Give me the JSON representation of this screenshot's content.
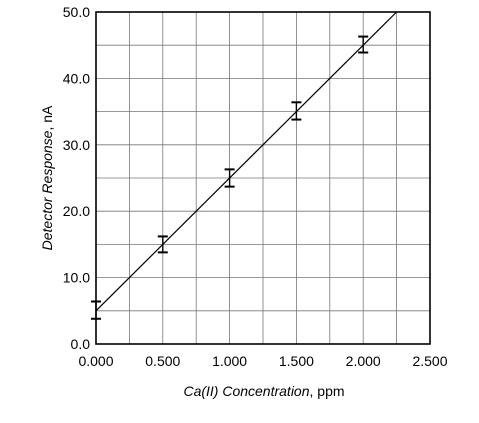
{
  "chart_data": {
    "type": "scatter",
    "title": "",
    "xlabel_italic": "Ca(II) Concentration",
    "xlabel_unit": ", ppm",
    "ylabel_italic": "Detector Response",
    "ylabel_unit": ", nA",
    "xlim": [
      0,
      2.5
    ],
    "ylim": [
      0,
      50
    ],
    "x_ticks": [
      0,
      0.5,
      1.0,
      1.5,
      2.0,
      2.5
    ],
    "x_tick_labels": [
      "0.000",
      "0.500",
      "1.000",
      "1.500",
      "2.000",
      "2.500"
    ],
    "y_ticks": [
      0,
      10,
      20,
      30,
      40,
      50
    ],
    "y_tick_labels": [
      "0.0",
      "10.0",
      "20.0",
      "30.0",
      "40.0",
      "50.0"
    ],
    "grid": true,
    "grid_minor_step": {
      "x": 0.25,
      "y": 5
    },
    "points": [
      {
        "x": 0.0,
        "y": 5.1,
        "error": 1.3
      },
      {
        "x": 0.5,
        "y": 15.0,
        "error": 1.2
      },
      {
        "x": 1.0,
        "y": 25.0,
        "error": 1.3
      },
      {
        "x": 1.5,
        "y": 35.1,
        "error": 1.3
      },
      {
        "x": 2.0,
        "y": 45.1,
        "error": 1.2
      }
    ],
    "fit_line": {
      "slope": 20.0,
      "intercept": 5.0,
      "x_start": 0.0
    }
  }
}
